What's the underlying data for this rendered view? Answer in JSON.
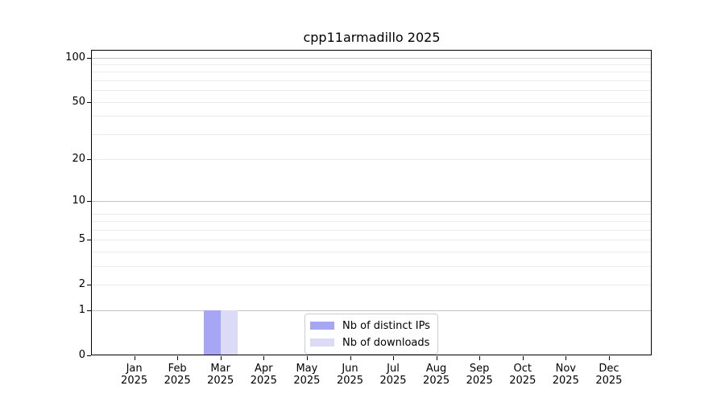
{
  "chart_data": {
    "type": "bar",
    "title": "cpp11armadillo 2025",
    "x_axis": {
      "months": [
        "Jan",
        "Feb",
        "Mar",
        "Apr",
        "May",
        "Jun",
        "Jul",
        "Aug",
        "Sep",
        "Oct",
        "Nov",
        "Dec"
      ],
      "year": "2025"
    },
    "y_axis": {
      "scale": "log10(value+1)",
      "ticks": [
        0,
        1,
        2,
        5,
        10,
        20,
        50,
        100
      ],
      "major_gridlines": [
        1,
        10,
        100
      ],
      "minor_gridlines": [
        2,
        3,
        4,
        5,
        6,
        7,
        8,
        20,
        30,
        40,
        50,
        60,
        70,
        80,
        90
      ],
      "ylim": [
        0,
        113
      ]
    },
    "series": [
      {
        "name": "Nb of distinct IPs",
        "color": "#a6a6f4",
        "values": [
          0,
          0,
          1,
          0,
          0,
          0,
          0,
          0,
          0,
          0,
          0,
          0
        ]
      },
      {
        "name": "Nb of downloads",
        "color": "#dbdbf8",
        "values": [
          0,
          0,
          1,
          0,
          0,
          0,
          0,
          0,
          0,
          0,
          0,
          0
        ]
      }
    ],
    "legend": {
      "position": "lower center inside plot",
      "entries": [
        "Nb of distinct IPs",
        "Nb of downloads"
      ]
    },
    "colors": {
      "axis": "#000000",
      "major_grid": "#c3c3c3",
      "minor_grid": "#ebebeb",
      "background": "#ffffff"
    }
  }
}
